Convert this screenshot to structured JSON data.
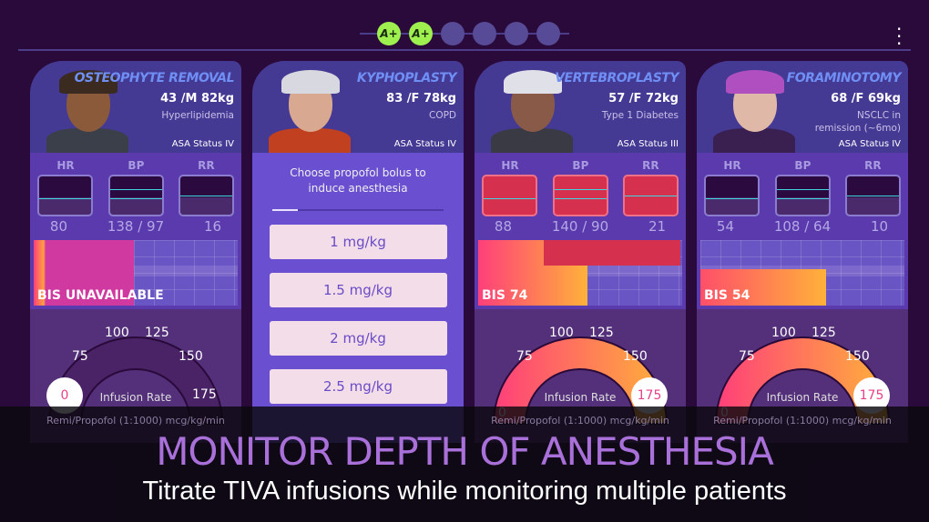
{
  "progress": {
    "grades": [
      "A+",
      "A+",
      "",
      "",
      "",
      ""
    ]
  },
  "menu_icon": "kebab-menu-icon",
  "vitals_labels": [
    "HR",
    "BP",
    "RR"
  ],
  "patients": [
    {
      "procedure": "OSTEOPHYTE REMOVAL",
      "demographics": "43 /M 82kg",
      "condition": "Hyperlipidemia",
      "asa": "ASA Status IV",
      "hr": "80",
      "bp": "138 / 97",
      "rr": "16",
      "bis": "BIS UNAVAILABLE",
      "alarm": false,
      "gauge_value": "0",
      "gauge_active": false
    },
    {
      "procedure": "KYPHOPLASTY",
      "demographics": "83 /F 78kg",
      "condition": "COPD",
      "asa": "ASA Status IV",
      "prompt": "Choose propofol bolus to induce anesthesia",
      "options": [
        "1 mg/kg",
        "1.5 mg/kg",
        "2 mg/kg",
        "2.5 mg/kg"
      ],
      "step_progress": 0.15
    },
    {
      "procedure": "VERTEBROPLASTY",
      "demographics": "57 /F 72kg",
      "condition": "Type 1 Diabetes",
      "asa": "ASA Status III",
      "hr": "88",
      "bp": "140 / 90",
      "rr": "21",
      "bis": "BIS 74",
      "alarm": true,
      "gauge_value": "175",
      "gauge_active": true
    },
    {
      "procedure": "FORAMINOTOMY",
      "demographics": "68 /F 69kg",
      "condition": "NSCLC in remission (~6mo)",
      "asa": "ASA Status IV",
      "hr": "54",
      "bp": "108 / 64",
      "rr": "10",
      "bis": "BIS 54",
      "alarm": false,
      "gauge_value": "175",
      "gauge_active": true
    }
  ],
  "gauge": {
    "ticks": [
      "0",
      "75",
      "100",
      "125",
      "150",
      "175"
    ],
    "label": "Infusion Rate",
    "footer": "Remi/Propofol (1:1000) mcg/kg/min"
  },
  "banner": {
    "title": "MONITOR DEPTH OF ANESTHESIA",
    "subtitle": "Titrate TIVA infusions while monitoring multiple patients"
  },
  "colors": {
    "accent": "#6f8ff5",
    "grade": "#9ef04f",
    "alarm": "#d6304f",
    "bis_gradient": [
      "#ff3f7a",
      "#ffb13a"
    ]
  }
}
